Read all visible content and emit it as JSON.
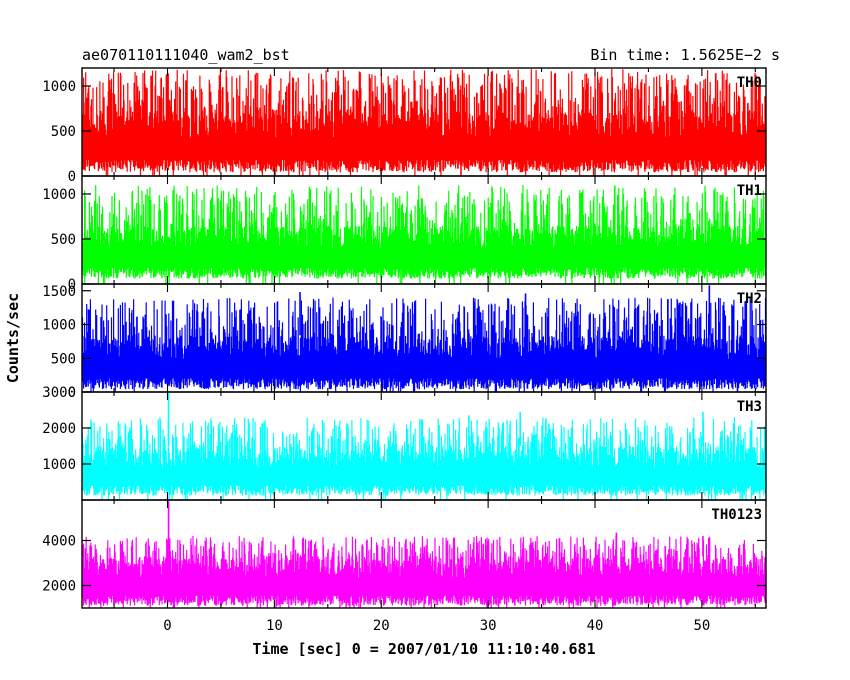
{
  "chart_data": {
    "type": "line",
    "title_left": "ae070110111040_wam2_bst",
    "title_right": "Bin time: 1.5625E−2 s",
    "xlabel": "Time [sec] 0 = 2007/01/10 11:10:40.681",
    "ylabel": "Counts/sec",
    "xlim": [
      -8,
      56
    ],
    "x_ticks": [
      0,
      10,
      20,
      30,
      40,
      50
    ],
    "x_data_range": [
      -8,
      56
    ],
    "bin_time_s": 0.015625,
    "grid": false,
    "panels": [
      {
        "name": "TH0",
        "color": "#ff0000",
        "ylim": [
          0,
          1200
        ],
        "y_ticks": [
          0,
          500,
          1000
        ],
        "base_range": [
          40,
          720
        ],
        "spike_max": 1190,
        "spike_rate": 0.38,
        "peaks": []
      },
      {
        "name": "TH1",
        "color": "#00ff00",
        "ylim": [
          0,
          1200
        ],
        "y_ticks": [
          0,
          500,
          1000
        ],
        "base_range": [
          60,
          650
        ],
        "spike_max": 1100,
        "spike_rate": 0.33,
        "peaks": []
      },
      {
        "name": "TH2",
        "color": "#0000ff",
        "ylim": [
          0,
          1600
        ],
        "y_ticks": [
          0,
          500,
          1000,
          1500
        ],
        "base_range": [
          40,
          840
        ],
        "spike_max": 1400,
        "spike_rate": 0.33,
        "peaks": [
          {
            "x": 50.7,
            "y": 1580
          },
          {
            "x": 12.4,
            "y": 1480
          },
          {
            "x": 33.5,
            "y": 1460
          }
        ]
      },
      {
        "name": "TH3",
        "color": "#00ffff",
        "ylim": [
          0,
          3000
        ],
        "y_ticks": [
          1000,
          2000,
          3000
        ],
        "base_range": [
          120,
          1500
        ],
        "spike_max": 2300,
        "spike_rate": 0.28,
        "peaks": [
          {
            "x": 0.1,
            "y": 2980
          },
          {
            "x": 33.0,
            "y": 2450
          },
          {
            "x": 28.2,
            "y": 2350
          },
          {
            "x": 50.1,
            "y": 2450
          }
        ]
      },
      {
        "name": "TH0123",
        "color": "#ff00ff",
        "ylim": [
          1000,
          5800
        ],
        "y_ticks": [
          2000,
          4000
        ],
        "base_range": [
          1100,
          3300
        ],
        "spike_max": 4200,
        "spike_rate": 0.28,
        "peaks": [
          {
            "x": 0.1,
            "y": 5750
          },
          {
            "x": 42.0,
            "y": 4350
          },
          {
            "x": 50.1,
            "y": 4200
          },
          {
            "x": 26.2,
            "y": 4000
          }
        ]
      }
    ]
  }
}
